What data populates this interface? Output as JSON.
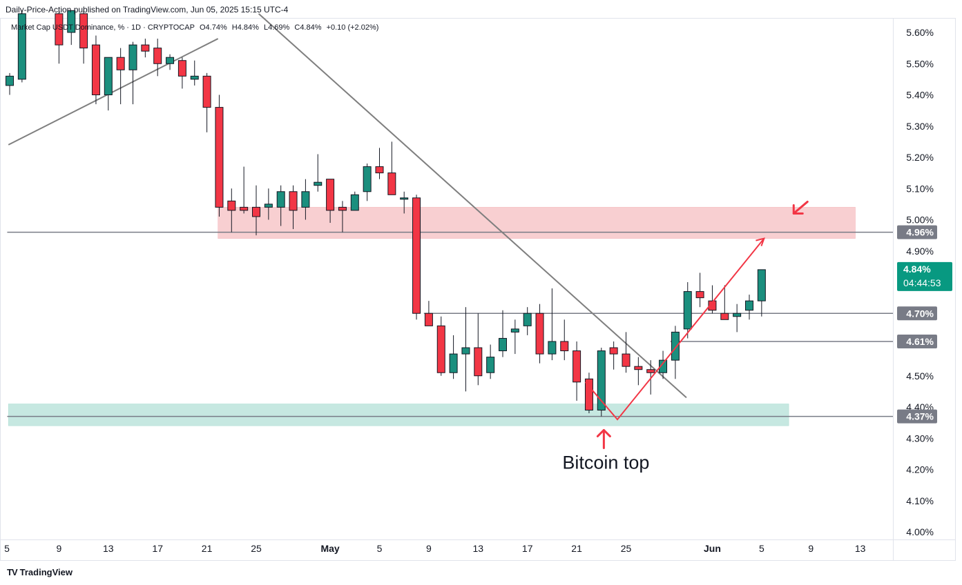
{
  "header": {
    "published_by": "Daily-Price-Action published on TradingView.com, Jun 05, 2025 15:15 UTC-4"
  },
  "legend": {
    "symbol": "Market Cap USDT Dominance, % · 1D · CRYPTOCAP",
    "open": "O4.74%",
    "high": "H4.84%",
    "low": "L4.69%",
    "close": "C4.84%",
    "change": "+0.10 (+2.02%)"
  },
  "footer": {
    "brand": "TradingView",
    "logo": "TV"
  },
  "colors": {
    "up": "#26a69a",
    "down": "#f23645",
    "up_body": "#1b8f7e",
    "grid": "#f0f3fa",
    "resistance_zone": "#f8cfd1",
    "support_zone": "#c6e8e1",
    "level_line": "#787b86",
    "annotation": "#f23645",
    "price_badge": "#089981"
  },
  "chart_data": {
    "type": "candlestick",
    "title": "Market Cap USDT Dominance, % · 1D · CRYPTOCAP",
    "ylabel": "%",
    "ylim": [
      3.98,
      5.66
    ],
    "y_ticks": [
      "5.60%",
      "5.50%",
      "5.40%",
      "5.30%",
      "5.20%",
      "5.10%",
      "5.00%",
      "4.90%",
      "4.80%",
      "4.70%",
      "4.60%",
      "4.50%",
      "4.40%",
      "4.30%",
      "4.20%",
      "4.10%",
      "4.00%"
    ],
    "x_ticks": [
      {
        "label": "5",
        "day": 0
      },
      {
        "label": "9",
        "day": 4
      },
      {
        "label": "13",
        "day": 8
      },
      {
        "label": "17",
        "day": 12
      },
      {
        "label": "21",
        "day": 16
      },
      {
        "label": "25",
        "day": 20
      },
      {
        "label": "May",
        "day": 26
      },
      {
        "label": "5",
        "day": 30
      },
      {
        "label": "9",
        "day": 34
      },
      {
        "label": "13",
        "day": 38
      },
      {
        "label": "17",
        "day": 42
      },
      {
        "label": "21",
        "day": 46
      },
      {
        "label": "25",
        "day": 50
      },
      {
        "label": "Jun",
        "day": 57
      },
      {
        "label": "5",
        "day": 61
      },
      {
        "label": "9",
        "day": 65
      },
      {
        "label": "13",
        "day": 69
      }
    ],
    "candles": [
      {
        "d": 0,
        "o": 5.43,
        "h": 5.47,
        "l": 5.4,
        "c": 5.46
      },
      {
        "d": 1,
        "o": 5.45,
        "h": 5.67,
        "l": 5.44,
        "c": 5.66
      },
      {
        "d": 4,
        "o": 5.66,
        "h": 5.67,
        "l": 5.5,
        "c": 5.56
      },
      {
        "d": 5,
        "o": 5.6,
        "h": 5.67,
        "l": 5.56,
        "c": 5.67
      },
      {
        "d": 6,
        "o": 5.66,
        "h": 5.67,
        "l": 5.5,
        "c": 5.55
      },
      {
        "d": 7,
        "o": 5.56,
        "h": 5.59,
        "l": 5.37,
        "c": 5.4
      },
      {
        "d": 8,
        "o": 5.4,
        "h": 5.52,
        "l": 5.35,
        "c": 5.52
      },
      {
        "d": 9,
        "o": 5.52,
        "h": 5.55,
        "l": 5.37,
        "c": 5.48
      },
      {
        "d": 10,
        "o": 5.48,
        "h": 5.57,
        "l": 5.37,
        "c": 5.56
      },
      {
        "d": 11,
        "o": 5.56,
        "h": 5.58,
        "l": 5.52,
        "c": 5.54
      },
      {
        "d": 12,
        "o": 5.55,
        "h": 5.58,
        "l": 5.46,
        "c": 5.5
      },
      {
        "d": 13,
        "o": 5.5,
        "h": 5.53,
        "l": 5.48,
        "c": 5.52
      },
      {
        "d": 14,
        "o": 5.51,
        "h": 5.52,
        "l": 5.42,
        "c": 5.46
      },
      {
        "d": 15,
        "o": 5.45,
        "h": 5.51,
        "l": 5.43,
        "c": 5.46
      },
      {
        "d": 16,
        "o": 5.46,
        "h": 5.47,
        "l": 5.28,
        "c": 5.36
      },
      {
        "d": 17,
        "o": 5.36,
        "h": 5.4,
        "l": 5.01,
        "c": 5.04
      },
      {
        "d": 18,
        "o": 5.06,
        "h": 5.1,
        "l": 4.96,
        "c": 5.03
      },
      {
        "d": 19,
        "o": 5.04,
        "h": 5.17,
        "l": 5.02,
        "c": 5.03
      },
      {
        "d": 20,
        "o": 5.04,
        "h": 5.11,
        "l": 4.95,
        "c": 5.01
      },
      {
        "d": 21,
        "o": 5.04,
        "h": 5.1,
        "l": 5.0,
        "c": 5.05
      },
      {
        "d": 22,
        "o": 5.04,
        "h": 5.11,
        "l": 4.98,
        "c": 5.09
      },
      {
        "d": 23,
        "o": 5.09,
        "h": 5.11,
        "l": 4.97,
        "c": 5.03
      },
      {
        "d": 24,
        "o": 5.04,
        "h": 5.13,
        "l": 5.0,
        "c": 5.09
      },
      {
        "d": 25,
        "o": 5.11,
        "h": 5.21,
        "l": 5.09,
        "c": 5.12
      },
      {
        "d": 26,
        "o": 5.13,
        "h": 5.13,
        "l": 4.99,
        "c": 5.03
      },
      {
        "d": 27,
        "o": 5.04,
        "h": 5.06,
        "l": 4.96,
        "c": 5.03
      },
      {
        "d": 28,
        "o": 5.03,
        "h": 5.09,
        "l": 5.03,
        "c": 5.08
      },
      {
        "d": 29,
        "o": 5.09,
        "h": 5.18,
        "l": 5.06,
        "c": 5.17
      },
      {
        "d": 30,
        "o": 5.17,
        "h": 5.23,
        "l": 5.13,
        "c": 5.15
      },
      {
        "d": 31,
        "o": 5.15,
        "h": 5.25,
        "l": 5.09,
        "c": 5.08
      },
      {
        "d": 32,
        "o": 5.07,
        "h": 5.09,
        "l": 5.02,
        "c": 5.07
      },
      {
        "d": 33,
        "o": 5.07,
        "h": 5.08,
        "l": 4.68,
        "c": 4.7
      },
      {
        "d": 34,
        "o": 4.7,
        "h": 4.74,
        "l": 4.66,
        "c": 4.66
      },
      {
        "d": 35,
        "o": 4.66,
        "h": 4.69,
        "l": 4.5,
        "c": 4.51
      },
      {
        "d": 36,
        "o": 4.51,
        "h": 4.63,
        "l": 4.49,
        "c": 4.57
      },
      {
        "d": 37,
        "o": 4.57,
        "h": 4.72,
        "l": 4.45,
        "c": 4.59
      },
      {
        "d": 38,
        "o": 4.59,
        "h": 4.7,
        "l": 4.47,
        "c": 4.5
      },
      {
        "d": 39,
        "o": 4.51,
        "h": 4.6,
        "l": 4.49,
        "c": 4.56
      },
      {
        "d": 40,
        "o": 4.58,
        "h": 4.71,
        "l": 4.56,
        "c": 4.62
      },
      {
        "d": 41,
        "o": 4.64,
        "h": 4.68,
        "l": 4.57,
        "c": 4.65
      },
      {
        "d": 42,
        "o": 4.66,
        "h": 4.72,
        "l": 4.63,
        "c": 4.7
      },
      {
        "d": 43,
        "o": 4.7,
        "h": 4.73,
        "l": 4.54,
        "c": 4.57
      },
      {
        "d": 44,
        "o": 4.57,
        "h": 4.78,
        "l": 4.55,
        "c": 4.61
      },
      {
        "d": 45,
        "o": 4.61,
        "h": 4.68,
        "l": 4.55,
        "c": 4.58
      },
      {
        "d": 46,
        "o": 4.58,
        "h": 4.61,
        "l": 4.42,
        "c": 4.48
      },
      {
        "d": 47,
        "o": 4.49,
        "h": 4.51,
        "l": 4.38,
        "c": 4.39
      },
      {
        "d": 48,
        "o": 4.39,
        "h": 4.59,
        "l": 4.37,
        "c": 4.58
      },
      {
        "d": 49,
        "o": 4.59,
        "h": 4.61,
        "l": 4.52,
        "c": 4.57
      },
      {
        "d": 50,
        "o": 4.57,
        "h": 4.64,
        "l": 4.51,
        "c": 4.53
      },
      {
        "d": 51,
        "o": 4.53,
        "h": 4.56,
        "l": 4.47,
        "c": 4.52
      },
      {
        "d": 52,
        "o": 4.52,
        "h": 4.55,
        "l": 4.44,
        "c": 4.51
      },
      {
        "d": 53,
        "o": 4.51,
        "h": 4.58,
        "l": 4.49,
        "c": 4.55
      },
      {
        "d": 54,
        "o": 4.55,
        "h": 4.66,
        "l": 4.49,
        "c": 4.64
      },
      {
        "d": 55,
        "o": 4.65,
        "h": 4.8,
        "l": 4.62,
        "c": 4.77
      },
      {
        "d": 56,
        "o": 4.77,
        "h": 4.83,
        "l": 4.72,
        "c": 4.75
      },
      {
        "d": 57,
        "o": 4.74,
        "h": 4.79,
        "l": 4.7,
        "c": 4.71
      },
      {
        "d": 58,
        "o": 4.7,
        "h": 4.79,
        "l": 4.68,
        "c": 4.68
      },
      {
        "d": 59,
        "o": 4.69,
        "h": 4.73,
        "l": 4.64,
        "c": 4.7
      },
      {
        "d": 60,
        "o": 4.71,
        "h": 4.76,
        "l": 4.68,
        "c": 4.74
      },
      {
        "d": 61,
        "o": 4.74,
        "h": 4.84,
        "l": 4.69,
        "c": 4.84
      }
    ],
    "levels": [
      {
        "value": 4.96,
        "label": "4.96%"
      },
      {
        "value": 4.7,
        "label": "4.70%"
      },
      {
        "value": 4.61,
        "label": "4.61%"
      },
      {
        "value": 4.37,
        "label": "4.37%"
      }
    ],
    "current_price": {
      "label": "4.84%",
      "countdown": "04:44:53",
      "value": 4.84
    },
    "zones": [
      {
        "name": "resistance",
        "from": 4.94,
        "to": 5.04,
        "start_day": 16.9,
        "end_day": 68.6
      },
      {
        "name": "support",
        "from": 4.34,
        "to": 4.41,
        "start_day": -0.1,
        "end_day": 63.2
      }
    ],
    "trendlines": [
      {
        "name": "rising",
        "points": [
          [
            -0.1,
            5.24
          ],
          [
            16.9,
            5.58
          ]
        ]
      },
      {
        "name": "falling",
        "points": [
          [
            20.2,
            5.66
          ],
          [
            54.9,
            4.43
          ]
        ]
      }
    ],
    "projection": {
      "points": [
        [
          46.7,
          4.48
        ],
        [
          49.3,
          4.36
        ],
        [
          61.2,
          4.94
        ]
      ]
    },
    "annotations": [
      {
        "text": "Bitcoin top",
        "day": 48.2,
        "value": 4.22
      }
    ]
  }
}
